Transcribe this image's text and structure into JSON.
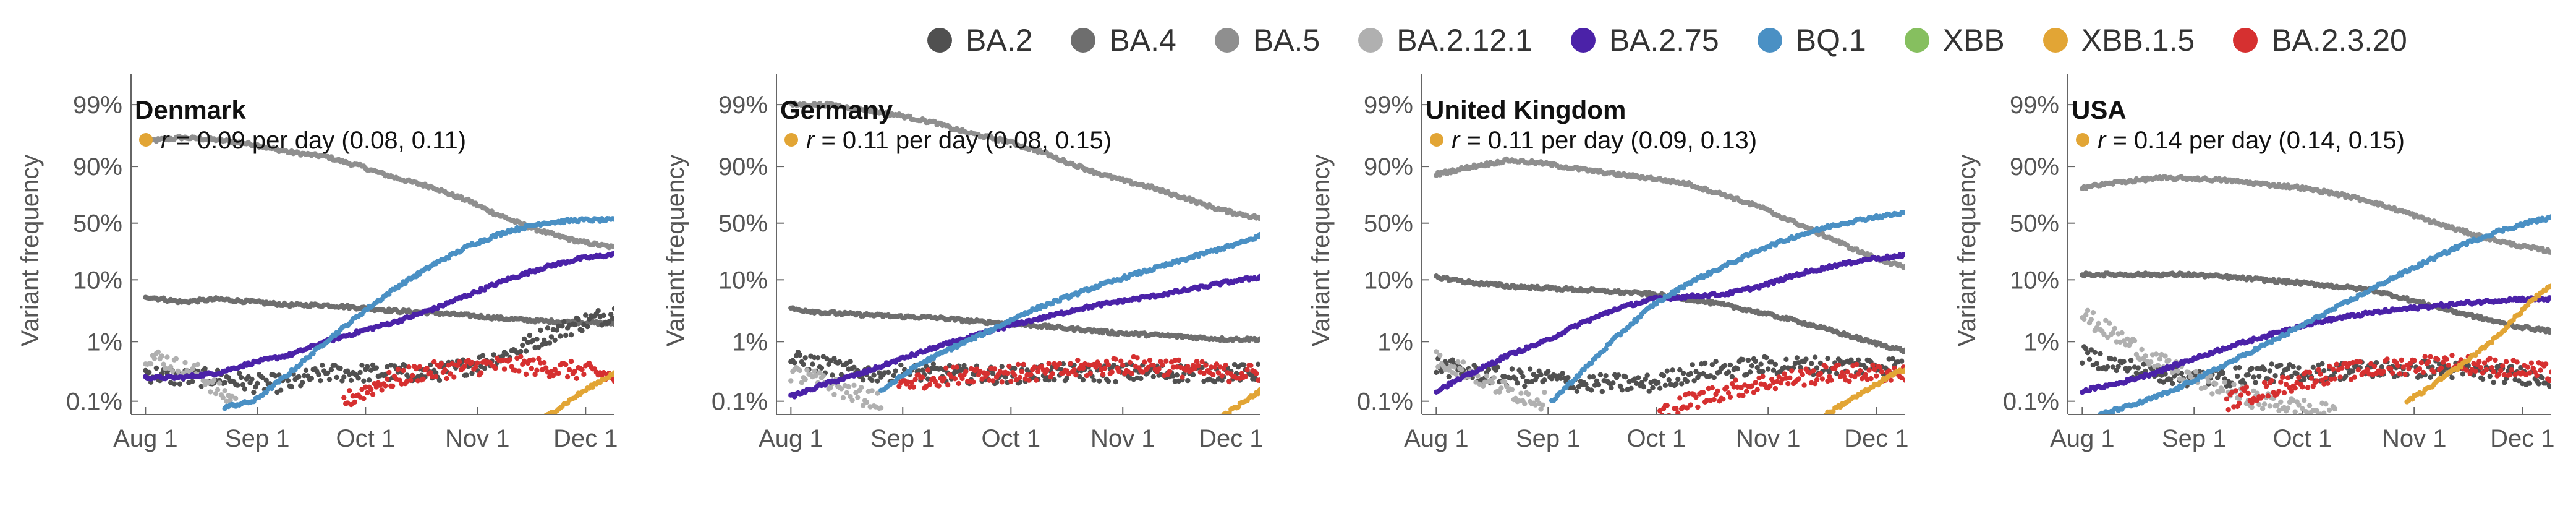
{
  "legend": [
    {
      "name": "BA.2",
      "color": "#505050"
    },
    {
      "name": "BA.4",
      "color": "#6e6e6e"
    },
    {
      "name": "BA.5",
      "color": "#8f8f8f"
    },
    {
      "name": "BA.2.12.1",
      "color": "#b0b0b0"
    },
    {
      "name": "BA.2.75",
      "color": "#4b22a8"
    },
    {
      "name": "BQ.1",
      "color": "#4a90c4"
    },
    {
      "name": "XBB",
      "color": "#86bf5f"
    },
    {
      "name": "XBB.1.5",
      "color": "#e2a535"
    },
    {
      "name": "BA.2.3.20",
      "color": "#d63030"
    }
  ],
  "chart_data": [
    {
      "type": "scatter",
      "title": "Denmark",
      "annotation": {
        "marker_color": "#e2a535",
        "r_symbol": "r",
        "text": "= 0.09 per day (0.08, 0.11)"
      },
      "ylabel": "Variant frequency",
      "yscale": "logit",
      "yticks": [
        0.001,
        0.01,
        0.1,
        0.5,
        0.9,
        0.99
      ],
      "yticklabels": [
        "0.1%",
        "1%",
        "10%",
        "50%",
        "90%",
        "99%"
      ],
      "xticklabels": [
        "Aug 1",
        "Sep 1",
        "Oct 1",
        "Nov 1",
        "Dec 1"
      ],
      "xtick_days": [
        0,
        31,
        61,
        92,
        122
      ],
      "xlim_days": [
        -4,
        130
      ],
      "series": [
        {
          "name": "BA.5",
          "x": [
            0,
            10,
            20,
            30,
            40,
            50,
            60,
            70,
            80,
            90,
            100,
            110,
            120,
            130
          ],
          "y": [
            0.96,
            0.965,
            0.962,
            0.955,
            0.94,
            0.93,
            0.9,
            0.85,
            0.8,
            0.7,
            0.55,
            0.42,
            0.33,
            0.28
          ]
        },
        {
          "name": "BA.4",
          "x": [
            0,
            10,
            20,
            30,
            40,
            50,
            60,
            70,
            80,
            90,
            100,
            110,
            120,
            130
          ],
          "y": [
            0.055,
            0.045,
            0.05,
            0.045,
            0.04,
            0.04,
            0.036,
            0.032,
            0.03,
            0.027,
            0.024,
            0.022,
            0.021,
            0.02
          ]
        },
        {
          "name": "BA.2",
          "x": [
            0,
            10,
            20,
            30,
            40,
            50,
            60,
            70,
            80,
            90,
            100,
            110,
            120,
            130
          ],
          "y": [
            0.003,
            0.0025,
            0.0025,
            0.002,
            0.002,
            0.003,
            0.003,
            0.003,
            0.003,
            0.004,
            0.006,
            0.012,
            0.02,
            0.03
          ]
        },
        {
          "name": "BA.2.12.1",
          "x": [
            0,
            5,
            10,
            15,
            20,
            25
          ],
          "y": [
            0.006,
            0.005,
            0.0035,
            0.003,
            0.0015,
            0.001
          ]
        },
        {
          "name": "BA.2.75",
          "x": [
            0,
            10,
            20,
            30,
            40,
            50,
            60,
            70,
            80,
            90,
            100,
            110,
            120,
            130
          ],
          "y": [
            0.0025,
            0.0025,
            0.003,
            0.0045,
            0.006,
            0.01,
            0.015,
            0.022,
            0.035,
            0.06,
            0.1,
            0.15,
            0.2,
            0.23
          ]
        },
        {
          "name": "BQ.1",
          "x": [
            22,
            30,
            40,
            50,
            60,
            70,
            80,
            90,
            100,
            110,
            120,
            130
          ],
          "y": [
            0.0008,
            0.001,
            0.003,
            0.01,
            0.03,
            0.08,
            0.17,
            0.3,
            0.42,
            0.5,
            0.53,
            0.53
          ]
        },
        {
          "name": "BA.2.3.20",
          "x": [
            55,
            65,
            75,
            85,
            95,
            105,
            115,
            125,
            130
          ],
          "y": [
            0.001,
            0.002,
            0.003,
            0.0035,
            0.004,
            0.004,
            0.0035,
            0.003,
            0.0025
          ]
        },
        {
          "name": "XBB.1.5",
          "x": [
            110,
            115,
            120,
            125,
            130
          ],
          "y": [
            0.0005,
            0.0008,
            0.0013,
            0.002,
            0.003
          ]
        }
      ]
    },
    {
      "type": "scatter",
      "title": "Germany",
      "annotation": {
        "marker_color": "#e2a535",
        "r_symbol": "r",
        "text": "= 0.11 per day (0.08, 0.15)"
      },
      "ylabel": "Variant frequency",
      "yscale": "logit",
      "yticks": [
        0.001,
        0.01,
        0.1,
        0.5,
        0.9,
        0.99
      ],
      "yticklabels": [
        "0.1%",
        "1%",
        "10%",
        "50%",
        "90%",
        "99%"
      ],
      "xticklabels": [
        "Aug 1",
        "Sep 1",
        "Oct 1",
        "Nov 1",
        "Dec 1"
      ],
      "xtick_days": [
        0,
        31,
        61,
        92,
        122
      ],
      "xlim_days": [
        -4,
        130
      ],
      "series": [
        {
          "name": "BA.5",
          "x": [
            0,
            10,
            20,
            30,
            40,
            50,
            60,
            70,
            80,
            90,
            100,
            110,
            120,
            130
          ],
          "y": [
            0.99,
            0.99,
            0.988,
            0.985,
            0.98,
            0.97,
            0.96,
            0.94,
            0.9,
            0.85,
            0.8,
            0.72,
            0.62,
            0.55
          ]
        },
        {
          "name": "BA.4",
          "x": [
            0,
            10,
            20,
            30,
            40,
            50,
            60,
            70,
            80,
            90,
            100,
            110,
            120,
            130
          ],
          "y": [
            0.035,
            0.03,
            0.028,
            0.026,
            0.025,
            0.022,
            0.02,
            0.018,
            0.016,
            0.014,
            0.013,
            0.012,
            0.011,
            0.011
          ]
        },
        {
          "name": "BA.2",
          "x": [
            0,
            10,
            20,
            30,
            40,
            50,
            60,
            70,
            80,
            90,
            100,
            110,
            120,
            130
          ],
          "y": [
            0.005,
            0.004,
            0.003,
            0.003,
            0.003,
            0.0028,
            0.0028,
            0.003,
            0.003,
            0.003,
            0.003,
            0.003,
            0.003,
            0.003
          ]
        },
        {
          "name": "BA.2.12.1",
          "x": [
            0,
            5,
            10,
            15,
            20,
            25
          ],
          "y": [
            0.003,
            0.0025,
            0.002,
            0.0015,
            0.0012,
            0.001
          ]
        },
        {
          "name": "BA.2.75",
          "x": [
            0,
            10,
            20,
            30,
            40,
            50,
            60,
            70,
            80,
            90,
            100,
            110,
            120,
            130
          ],
          "y": [
            0.0012,
            0.002,
            0.003,
            0.005,
            0.008,
            0.012,
            0.018,
            0.025,
            0.035,
            0.045,
            0.055,
            0.07,
            0.09,
            0.11
          ]
        },
        {
          "name": "BQ.1",
          "x": [
            25,
            35,
            45,
            55,
            65,
            75,
            85,
            95,
            105,
            115,
            125,
            130
          ],
          "y": [
            0.0015,
            0.004,
            0.008,
            0.015,
            0.03,
            0.05,
            0.08,
            0.12,
            0.17,
            0.24,
            0.32,
            0.38
          ]
        },
        {
          "name": "BA.2.3.20",
          "x": [
            30,
            40,
            50,
            60,
            70,
            80,
            90,
            100,
            110,
            120,
            130
          ],
          "y": [
            0.002,
            0.0025,
            0.003,
            0.003,
            0.003,
            0.0035,
            0.004,
            0.004,
            0.0035,
            0.003,
            0.003
          ]
        },
        {
          "name": "XBB.1.5",
          "x": [
            118,
            122,
            126,
            130
          ],
          "y": [
            0.0005,
            0.0007,
            0.001,
            0.0015
          ]
        }
      ]
    },
    {
      "type": "scatter",
      "title": "United Kingdom",
      "annotation": {
        "marker_color": "#e2a535",
        "r_symbol": "r",
        "text": "= 0.11 per day (0.09, 0.13)"
      },
      "ylabel": "Variant frequency",
      "yscale": "logit",
      "yticks": [
        0.001,
        0.01,
        0.1,
        0.5,
        0.9,
        0.99
      ],
      "yticklabels": [
        "0.1%",
        "1%",
        "10%",
        "50%",
        "90%",
        "99%"
      ],
      "xticklabels": [
        "Aug 1",
        "Sep 1",
        "Oct 1",
        "Nov 1",
        "Dec 1"
      ],
      "xtick_days": [
        0,
        31,
        61,
        92,
        122
      ],
      "xlim_days": [
        -4,
        130
      ],
      "series": [
        {
          "name": "BA.5",
          "x": [
            0,
            10,
            20,
            30,
            40,
            50,
            60,
            70,
            80,
            90,
            100,
            110,
            120,
            130
          ],
          "y": [
            0.87,
            0.9,
            0.92,
            0.91,
            0.89,
            0.87,
            0.85,
            0.82,
            0.75,
            0.65,
            0.5,
            0.35,
            0.22,
            0.15
          ]
        },
        {
          "name": "BA.4",
          "x": [
            0,
            10,
            20,
            30,
            40,
            50,
            60,
            70,
            80,
            90,
            100,
            110,
            120,
            130
          ],
          "y": [
            0.11,
            0.09,
            0.08,
            0.075,
            0.07,
            0.065,
            0.06,
            0.05,
            0.04,
            0.03,
            0.022,
            0.015,
            0.01,
            0.007
          ]
        },
        {
          "name": "BA.2",
          "x": [
            0,
            10,
            20,
            30,
            40,
            50,
            60,
            70,
            80,
            90,
            100,
            110,
            120,
            130
          ],
          "y": [
            0.004,
            0.003,
            0.0025,
            0.0025,
            0.002,
            0.002,
            0.002,
            0.003,
            0.0035,
            0.004,
            0.004,
            0.004,
            0.004,
            0.004
          ]
        },
        {
          "name": "BA.2.12.1",
          "x": [
            0,
            5,
            10,
            15,
            20,
            25,
            30
          ],
          "y": [
            0.005,
            0.004,
            0.003,
            0.002,
            0.0015,
            0.0012,
            0.001
          ]
        },
        {
          "name": "BA.2.75",
          "x": [
            0,
            10,
            20,
            30,
            40,
            50,
            60,
            70,
            80,
            90,
            100,
            110,
            120,
            130
          ],
          "y": [
            0.0015,
            0.003,
            0.006,
            0.01,
            0.02,
            0.035,
            0.05,
            0.055,
            0.06,
            0.08,
            0.12,
            0.16,
            0.2,
            0.22
          ]
        },
        {
          "name": "BQ.1",
          "x": [
            32,
            40,
            50,
            60,
            70,
            80,
            90,
            100,
            110,
            120,
            130
          ],
          "y": [
            0.001,
            0.003,
            0.012,
            0.04,
            0.09,
            0.16,
            0.27,
            0.38,
            0.48,
            0.55,
            0.6
          ]
        },
        {
          "name": "BA.2.3.20",
          "x": [
            62,
            70,
            80,
            90,
            100,
            110,
            120,
            130
          ],
          "y": [
            0.0006,
            0.001,
            0.0015,
            0.002,
            0.0025,
            0.003,
            0.003,
            0.003
          ]
        },
        {
          "name": "XBB.1.5",
          "x": [
            108,
            114,
            120,
            125,
            130
          ],
          "y": [
            0.0006,
            0.001,
            0.0016,
            0.0025,
            0.0035
          ]
        }
      ]
    },
    {
      "type": "scatter",
      "title": "USA",
      "annotation": {
        "marker_color": "#e2a535",
        "r_symbol": "r",
        "text": "= 0.14 per day (0.14, 0.15)"
      },
      "ylabel": "Variant frequency",
      "yscale": "logit",
      "yticks": [
        0.001,
        0.01,
        0.1,
        0.5,
        0.9,
        0.99
      ],
      "yticklabels": [
        "0.1%",
        "1%",
        "10%",
        "50%",
        "90%",
        "99%"
      ],
      "xticklabels": [
        "Aug 1",
        "Sep 1",
        "Oct 1",
        "Nov 1",
        "Dec 1"
      ],
      "xtick_days": [
        0,
        31,
        61,
        92,
        122
      ],
      "xlim_days": [
        -4,
        130
      ],
      "series": [
        {
          "name": "BA.5",
          "x": [
            0,
            10,
            20,
            30,
            40,
            50,
            60,
            70,
            80,
            90,
            100,
            110,
            120,
            130
          ],
          "y": [
            0.8,
            0.83,
            0.85,
            0.85,
            0.84,
            0.82,
            0.8,
            0.76,
            0.7,
            0.6,
            0.48,
            0.38,
            0.3,
            0.25
          ]
        },
        {
          "name": "BA.4",
          "x": [
            0,
            10,
            20,
            30,
            40,
            50,
            60,
            70,
            80,
            90,
            100,
            110,
            120,
            130
          ],
          "y": [
            0.12,
            0.12,
            0.12,
            0.12,
            0.11,
            0.1,
            0.09,
            0.08,
            0.07,
            0.05,
            0.035,
            0.025,
            0.018,
            0.015
          ]
        },
        {
          "name": "BA.2",
          "x": [
            0,
            10,
            20,
            30,
            40,
            50,
            60,
            70,
            80,
            90,
            100,
            110,
            120,
            130
          ],
          "y": [
            0.006,
            0.004,
            0.003,
            0.0025,
            0.0025,
            0.003,
            0.003,
            0.0032,
            0.0035,
            0.0035,
            0.0035,
            0.003,
            0.0028,
            0.0025
          ]
        },
        {
          "name": "BA.2.12.1",
          "x": [
            0,
            10,
            20,
            30,
            40,
            50,
            60,
            70
          ],
          "y": [
            0.028,
            0.012,
            0.005,
            0.0025,
            0.0015,
            0.001,
            0.0008,
            0.0006
          ]
        },
        {
          "name": "BA.2.75",
          "x": [
            0,
            10,
            20,
            30,
            40,
            50,
            60,
            70,
            80,
            90,
            100,
            110,
            120,
            130
          ],
          "y": [
            0.0015,
            0.002,
            0.003,
            0.005,
            0.008,
            0.012,
            0.018,
            0.024,
            0.03,
            0.035,
            0.04,
            0.045,
            0.05,
            0.05
          ]
        },
        {
          "name": "BQ.1",
          "x": [
            5,
            15,
            25,
            35,
            45,
            55,
            65,
            75,
            85,
            95,
            105,
            115,
            125,
            130
          ],
          "y": [
            0.0006,
            0.0009,
            0.0015,
            0.003,
            0.006,
            0.012,
            0.025,
            0.05,
            0.1,
            0.18,
            0.3,
            0.42,
            0.52,
            0.55
          ]
        },
        {
          "name": "BA.2.3.20",
          "x": [
            40,
            50,
            60,
            70,
            80,
            90,
            100,
            110,
            120,
            130
          ],
          "y": [
            0.001,
            0.0015,
            0.0022,
            0.003,
            0.0035,
            0.004,
            0.0045,
            0.004,
            0.0035,
            0.003
          ]
        },
        {
          "name": "XBB.1.5",
          "x": [
            90,
            95,
            100,
            105,
            110,
            115,
            120,
            125,
            130
          ],
          "y": [
            0.001,
            0.0015,
            0.0025,
            0.004,
            0.007,
            0.012,
            0.025,
            0.05,
            0.08
          ]
        }
      ]
    }
  ]
}
